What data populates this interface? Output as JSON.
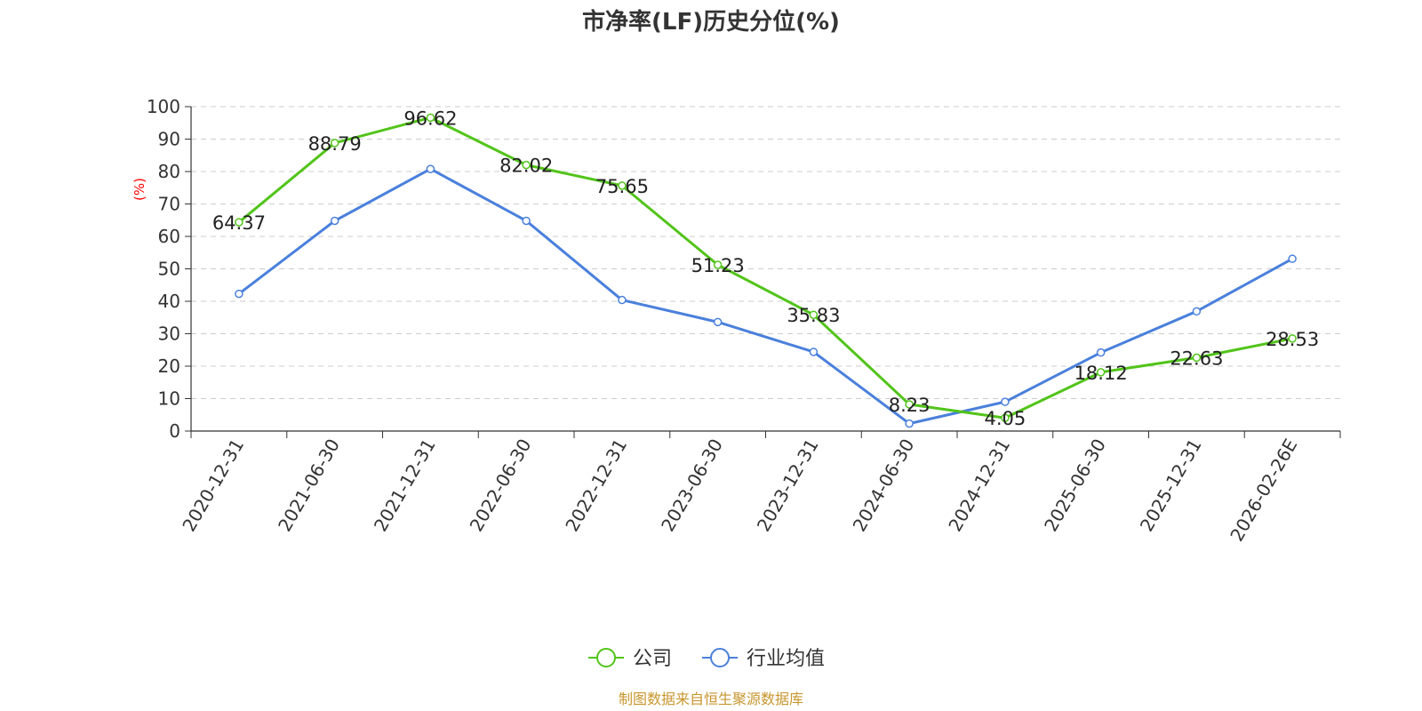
{
  "chart_data": {
    "type": "line",
    "title": "市净率(LF)历史分位(%)",
    "ylabel": "(%)",
    "ylim": [
      0,
      100
    ],
    "yticks": [
      0,
      10,
      20,
      30,
      40,
      50,
      60,
      70,
      80,
      90,
      100
    ],
    "categories": [
      "2020-12-31",
      "2021-06-30",
      "2021-12-31",
      "2022-06-30",
      "2022-12-31",
      "2023-06-30",
      "2023-12-31",
      "2024-06-30",
      "2024-12-31",
      "2025-06-30",
      "2025-12-31",
      "2026-02-26E"
    ],
    "grid": true,
    "legend_position": "bottom",
    "series": [
      {
        "name": "公司",
        "color": "#52c41a",
        "values": [
          64.37,
          88.79,
          96.62,
          82.02,
          75.65,
          51.23,
          35.83,
          8.23,
          4.05,
          18.12,
          22.63,
          28.53
        ],
        "labels": [
          "64.37",
          "88.79",
          "96.62",
          "82.02",
          "75.65",
          "51.23",
          "35.83",
          "8.23",
          "4.05",
          "18.12",
          "22.63",
          "28.53"
        ]
      },
      {
        "name": "行业均值",
        "color": "#4a80dc",
        "values": [
          42.3,
          64.8,
          80.8,
          64.8,
          40.4,
          33.6,
          24.4,
          2.3,
          9.0,
          24.2,
          36.9,
          53.1
        ]
      }
    ],
    "source": "制图数据来自恒生聚源数据库",
    "title_color": "#333333",
    "ylabel_color": "#ff0000",
    "source_color": "#c8962e"
  }
}
